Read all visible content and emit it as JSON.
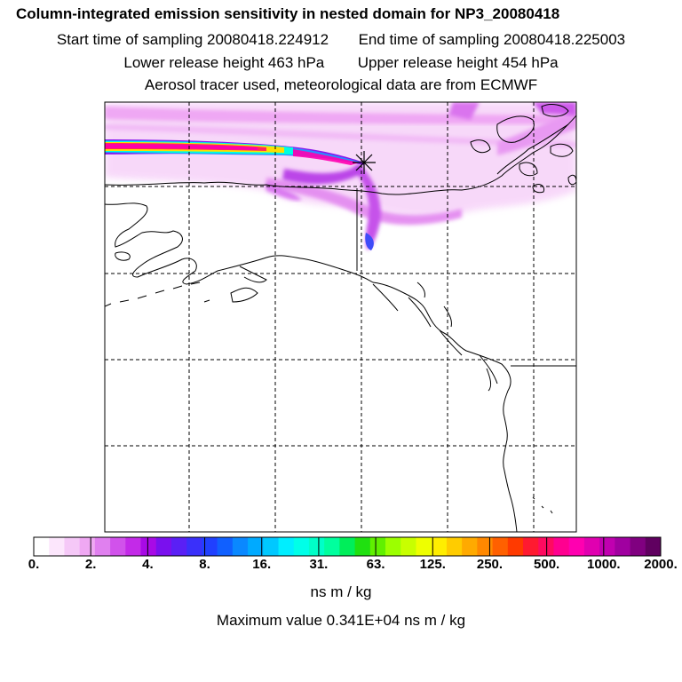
{
  "titles": {
    "line1": "Column-integrated emission sensitivity in nested domain for NP3_20080418",
    "start": "Start time of sampling 20080418.224912",
    "end": "End time of sampling 20080418.225003",
    "lower": "Lower release height  463 hPa",
    "upper": "Upper release height  454 hPa",
    "line4": "Aerosol tracer used, meteorological data are from ECMWF"
  },
  "colorbar": {
    "tick_labels": [
      "0.",
      "2.",
      "4.",
      "8.",
      "16.",
      "31.",
      "63.",
      "125.",
      "250.",
      "500.",
      "1000.",
      "2000."
    ],
    "colors": [
      "#ffffff",
      "#fce6fc",
      "#f5c8f7",
      "#efa8f3",
      "#e080ef",
      "#d152eb",
      "#c32ae8",
      "#a80ae6",
      "#7a10ee",
      "#5a20f5",
      "#3a30fa",
      "#2040ff",
      "#1060ff",
      "#0a88ff",
      "#00aaff",
      "#00c8ff",
      "#00eeff",
      "#00ffe8",
      "#00ffc8",
      "#00ff9e",
      "#00ee5a",
      "#20e010",
      "#60f000",
      "#9cff00",
      "#c8ff00",
      "#eeff00",
      "#ffee00",
      "#ffcc00",
      "#ffaa00",
      "#ff8800",
      "#ff6000",
      "#ff3a00",
      "#ff1a30",
      "#ff0a60",
      "#ff0090",
      "#ff00b0",
      "#e000b0",
      "#c000b0",
      "#a000a0",
      "#800080",
      "#600060"
    ],
    "units": "ns m / kg"
  },
  "maximum": "Maximum value  0.341E+04 ns m / kg",
  "map": {
    "release_marker": "x-star",
    "grid": "dashed",
    "plume_colors": [
      "#ff00cc",
      "#ff33aa",
      "#ffcc00",
      "#ccff00",
      "#00ffcc",
      "#00ccff",
      "#6600ff"
    ]
  }
}
